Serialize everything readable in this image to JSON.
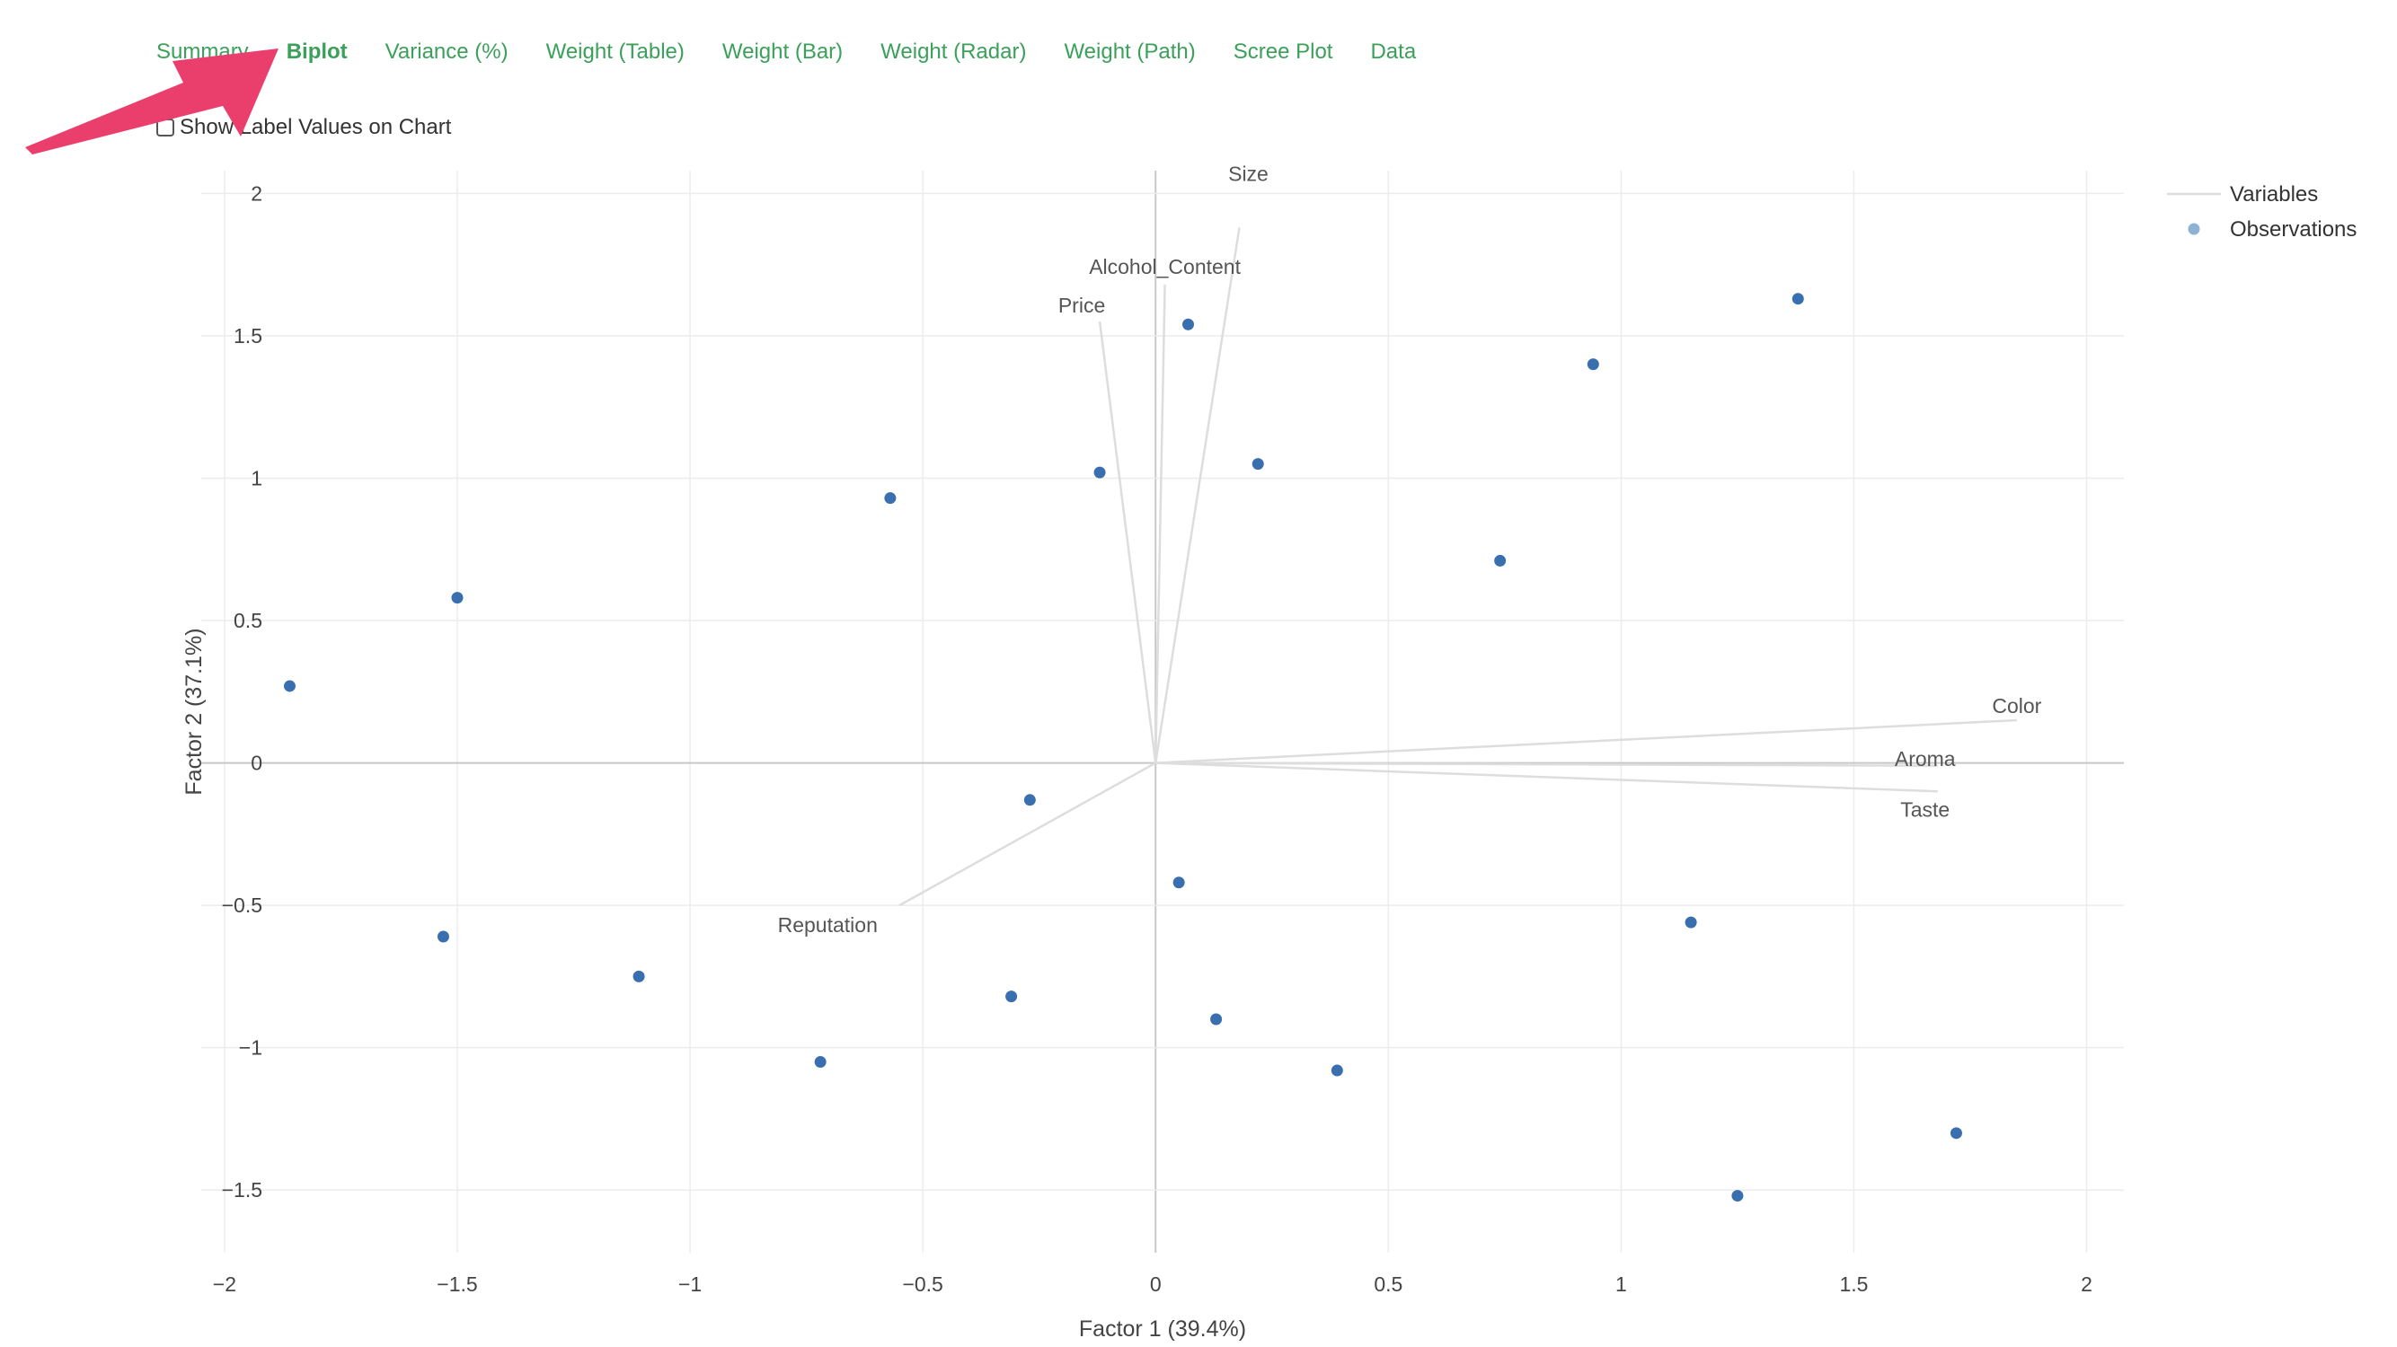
{
  "tabs": [
    {
      "label": "Summary",
      "active": false
    },
    {
      "label": "Biplot",
      "active": true
    },
    {
      "label": "Variance (%)",
      "active": false
    },
    {
      "label": "Weight (Table)",
      "active": false
    },
    {
      "label": "Weight (Bar)",
      "active": false
    },
    {
      "label": "Weight (Radar)",
      "active": false
    },
    {
      "label": "Weight (Path)",
      "active": false
    },
    {
      "label": "Scree Plot",
      "active": false
    },
    {
      "label": "Data",
      "active": false
    }
  ],
  "options": {
    "show_label_values": {
      "label": "Show Label Values on Chart",
      "checked": false
    }
  },
  "colors": {
    "tab_text": "#3aa05a",
    "arrow": "#ea3f6c",
    "observation": "#3a6faf",
    "variable_line": "#dddddd",
    "grid": "#ececec",
    "zero_line": "#c8c8c8"
  },
  "chart_data": {
    "type": "scatter",
    "xlabel": "Factor 1 (39.4%)",
    "ylabel": "Factor 2 (37.1%)",
    "xlim": [
      -2.05,
      2.08
    ],
    "ylim": [
      -1.72,
      2.08
    ],
    "x_ticks": [
      -2,
      -1.5,
      -1,
      -0.5,
      0,
      0.5,
      1,
      1.5,
      2
    ],
    "y_ticks": [
      -1.5,
      -1,
      -0.5,
      0,
      0.5,
      1,
      1.5,
      2
    ],
    "grid": true,
    "legend": {
      "placement": "top-right",
      "items": [
        {
          "name": "Variables",
          "kind": "line"
        },
        {
          "name": "Observations",
          "kind": "marker"
        }
      ]
    },
    "series": [
      {
        "name": "Variables",
        "kind": "vectors",
        "vectors": [
          {
            "label": "Size",
            "x": 0.18,
            "y": 1.88
          },
          {
            "label": "Alcohol_Content",
            "x": 0.02,
            "y": 1.68
          },
          {
            "label": "Price",
            "x": -0.12,
            "y": 1.55
          },
          {
            "label": "Color",
            "x": 1.85,
            "y": 0.15
          },
          {
            "label": "Aroma",
            "x": 1.68,
            "y": -0.01
          },
          {
            "label": "Taste",
            "x": 1.68,
            "y": -0.1
          },
          {
            "label": "Reputation",
            "x": -0.55,
            "y": -0.5
          }
        ]
      },
      {
        "name": "Observations",
        "kind": "points",
        "points": [
          {
            "x": 0.07,
            "y": 1.54
          },
          {
            "x": 1.38,
            "y": 1.63
          },
          {
            "x": 0.94,
            "y": 1.4
          },
          {
            "x": -0.12,
            "y": 1.02
          },
          {
            "x": 0.22,
            "y": 1.05
          },
          {
            "x": -0.57,
            "y": 0.93
          },
          {
            "x": 0.74,
            "y": 0.71
          },
          {
            "x": -1.5,
            "y": 0.58
          },
          {
            "x": -1.86,
            "y": 0.27
          },
          {
            "x": -0.27,
            "y": -0.13
          },
          {
            "x": 0.05,
            "y": -0.42
          },
          {
            "x": 1.15,
            "y": -0.56
          },
          {
            "x": -1.53,
            "y": -0.61
          },
          {
            "x": -1.11,
            "y": -0.75
          },
          {
            "x": -0.31,
            "y": -0.82
          },
          {
            "x": 0.13,
            "y": -0.9
          },
          {
            "x": -0.72,
            "y": -1.05
          },
          {
            "x": 0.39,
            "y": -1.08
          },
          {
            "x": 1.72,
            "y": -1.3
          },
          {
            "x": 1.25,
            "y": -1.52
          }
        ]
      }
    ]
  }
}
